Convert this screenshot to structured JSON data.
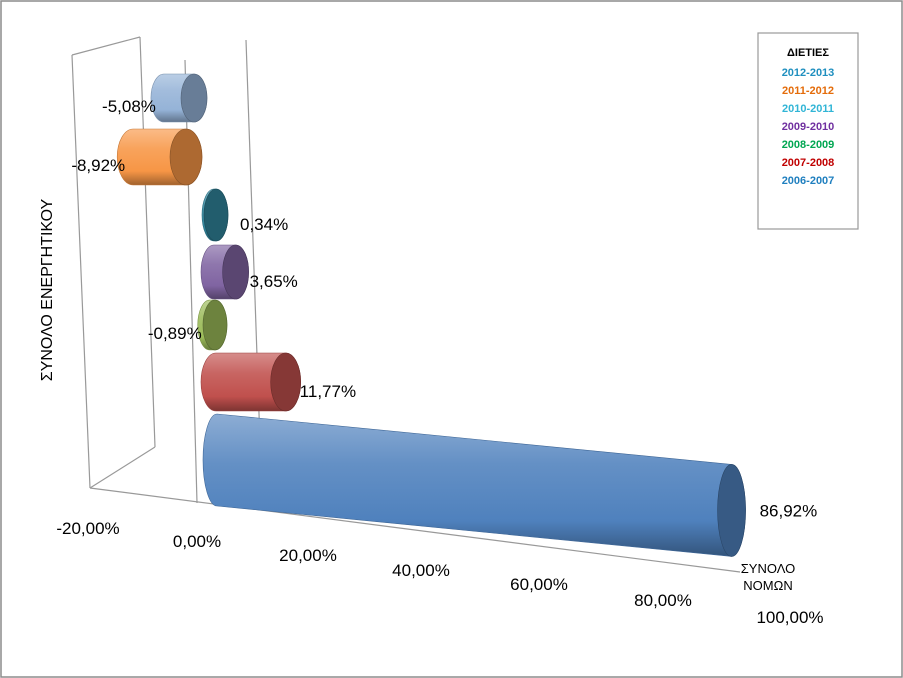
{
  "chart_data": {
    "type": "bar",
    "orientation": "horizontal",
    "style": "3d-cylinder",
    "title": "",
    "ylabel": "ΣΥΝΟΛΟ ΕΝΕΡΓΗΤΙΚΟΥ",
    "xlabel": "ΣΥΝΟΛΟ\nΝΟΜΩΝ",
    "xlim": [
      -20,
      100
    ],
    "x_ticks": [
      "-20,00%",
      "0,00%",
      "20,00%",
      "40,00%",
      "60,00%",
      "80,00%",
      "100,00%"
    ],
    "legend": {
      "title": "ΔΙΕΤΙΕΣ",
      "placement": "top-right",
      "entries": [
        "2012-2013",
        "2011-2012",
        "2010-2011",
        "2009-2010",
        "2008-2009",
        "2007-2008",
        "2006-2007"
      ]
    },
    "series": [
      {
        "name": "2012-2013",
        "value": -5.08,
        "label": "-5,08%",
        "color": "#95b3d7"
      },
      {
        "name": "2011-2012",
        "value": -8.92,
        "label": "-8,92%",
        "color": "#f79646"
      },
      {
        "name": "2010-2011",
        "value": 0.34,
        "label": "0,34%",
        "color": "#31859c"
      },
      {
        "name": "2009-2010",
        "value": 3.65,
        "label": "3,65%",
        "color": "#8064a2"
      },
      {
        "name": "2008-2009",
        "value": -0.89,
        "label": "-0,89%",
        "color": "#9bbb59"
      },
      {
        "name": "2007-2008",
        "value": 11.77,
        "label": "11,77%",
        "color": "#c0504d"
      },
      {
        "name": "2006-2007",
        "value": 86.92,
        "label": "86,92%",
        "color": "#4f81bd"
      }
    ],
    "legend_text_colors": [
      "#1f8fbf",
      "#e46c0a",
      "#31b5d6",
      "#7030a0",
      "#00a651",
      "#c00000",
      "#1f7fbf"
    ]
  }
}
